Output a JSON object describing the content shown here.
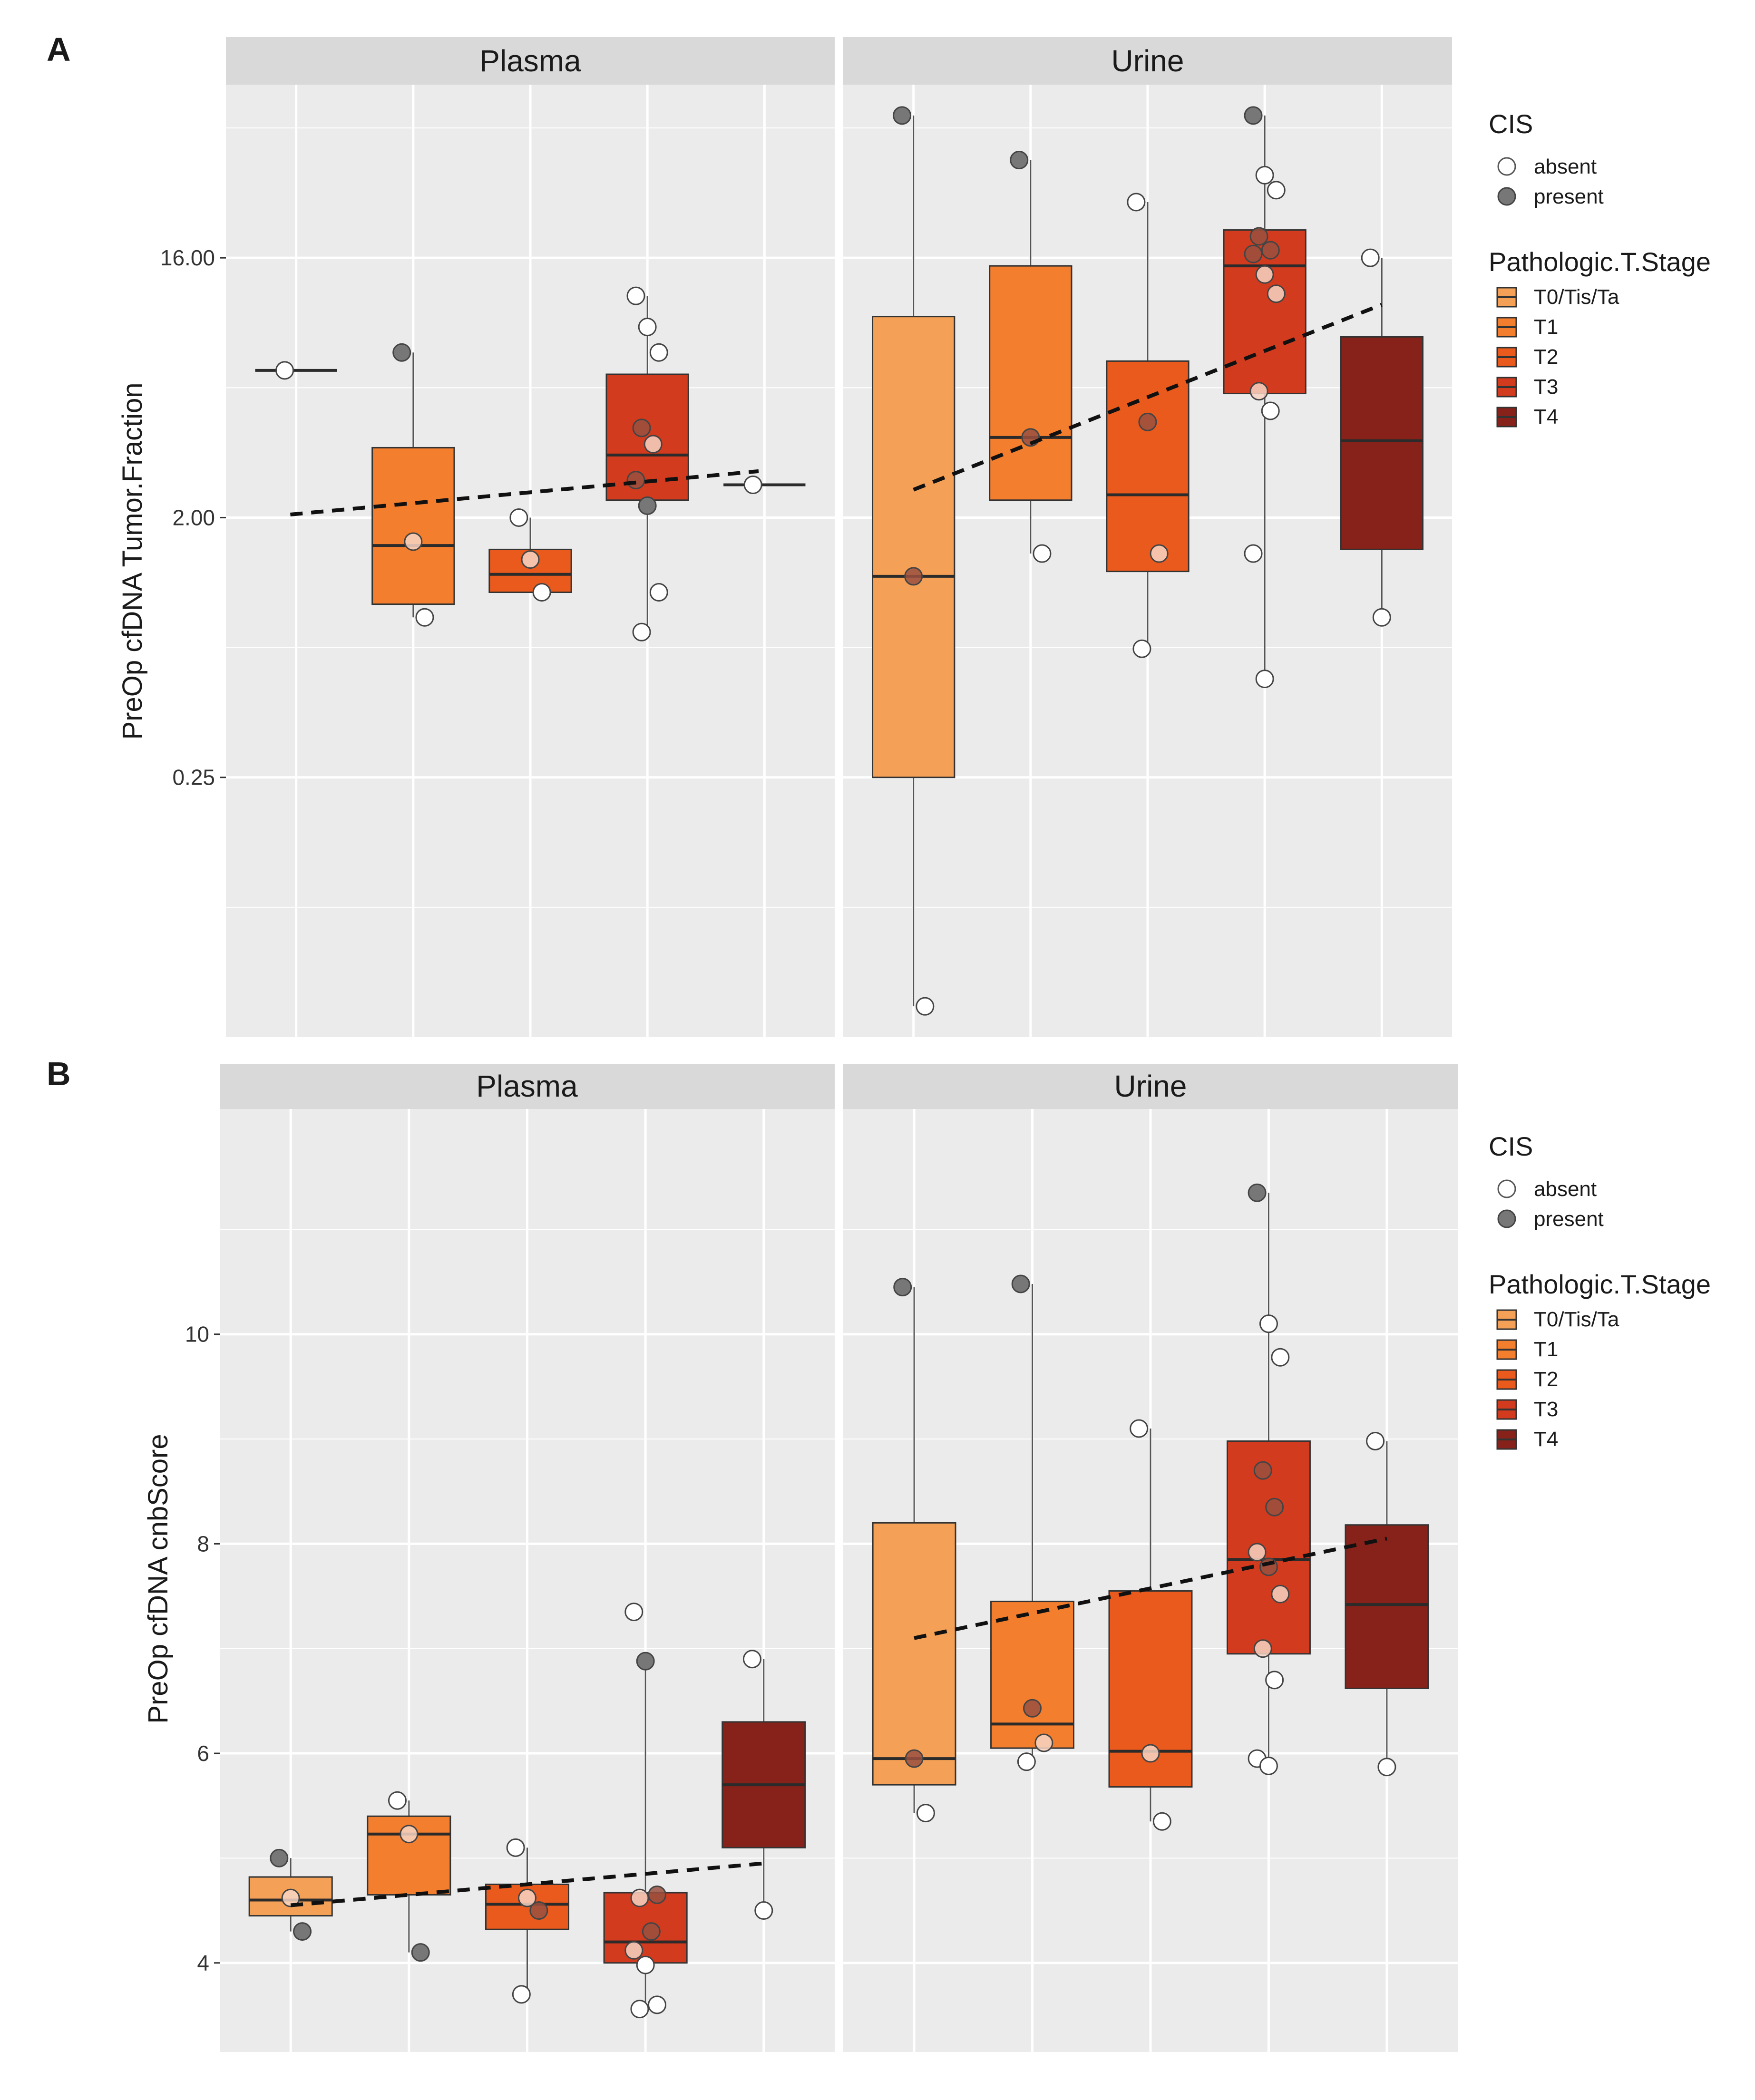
{
  "chart_data": [
    {
      "type": "box",
      "panel_label": "A",
      "ylabel": "PreOp cfDNA Tumor.Fraction",
      "y_scale": "log2",
      "ylim": [
        0.03125,
        64
      ],
      "yticks": [
        0.25,
        2,
        16
      ],
      "ytick_labels": [
        "0.25",
        "2.00",
        "16.00"
      ],
      "facets": [
        {
          "name": "Plasma",
          "groups": [
            {
              "stage": "T0/Tis/Ta",
              "min": 6.5,
              "q1": 6.5,
              "median": 6.5,
              "q3": 6.5,
              "max": 6.5,
              "points": [
                {
                  "v": 6.5,
                  "cis": "absent"
                }
              ]
            },
            {
              "stage": "T1",
              "min": 0.9,
              "q1": 1.0,
              "median": 1.6,
              "q3": 3.5,
              "max": 7.5,
              "points": [
                {
                  "v": 7.5,
                  "cis": "present"
                },
                {
                  "v": 1.65,
                  "cis": "absent"
                },
                {
                  "v": 0.9,
                  "cis": "absent"
                }
              ]
            },
            {
              "stage": "T2",
              "min": 1.1,
              "q1": 1.1,
              "median": 1.27,
              "q3": 1.55,
              "max": 2.0,
              "points": [
                {
                  "v": 2.0,
                  "cis": "absent"
                },
                {
                  "v": 1.43,
                  "cis": "absent"
                },
                {
                  "v": 1.1,
                  "cis": "absent"
                }
              ]
            },
            {
              "stage": "T3",
              "min": 0.8,
              "q1": 2.3,
              "median": 3.3,
              "q3": 6.3,
              "max": 11.8,
              "points": [
                {
                  "v": 11.8,
                  "cis": "absent"
                },
                {
                  "v": 9.2,
                  "cis": "absent"
                },
                {
                  "v": 7.5,
                  "cis": "absent"
                },
                {
                  "v": 4.1,
                  "cis": "present"
                },
                {
                  "v": 3.6,
                  "cis": "absent"
                },
                {
                  "v": 2.7,
                  "cis": "present"
                },
                {
                  "v": 2.2,
                  "cis": "present"
                },
                {
                  "v": 1.1,
                  "cis": "absent"
                },
                {
                  "v": 0.8,
                  "cis": "absent"
                }
              ]
            },
            {
              "stage": "T4",
              "min": 2.6,
              "q1": 2.6,
              "median": 2.6,
              "q3": 2.6,
              "max": 2.6,
              "points": [
                {
                  "v": 2.6,
                  "cis": "absent"
                }
              ]
            }
          ],
          "trend": {
            "x_start": 0.95,
            "y_start": 2.05,
            "x_end": 4.95,
            "y_end": 2.9
          }
        },
        {
          "name": "Urine",
          "groups": [
            {
              "stage": "T0/Tis/Ta",
              "min": 0.04,
              "q1": 0.25,
              "median": 1.25,
              "q3": 10.0,
              "max": 50.0,
              "points": [
                {
                  "v": 50.0,
                  "cis": "present"
                },
                {
                  "v": 1.25,
                  "cis": "present"
                },
                {
                  "v": 0.04,
                  "cis": "absent"
                }
              ]
            },
            {
              "stage": "T1",
              "min": 1.5,
              "q1": 2.3,
              "median": 3.8,
              "q3": 15.0,
              "max": 35.0,
              "points": [
                {
                  "v": 35.0,
                  "cis": "present"
                },
                {
                  "v": 3.8,
                  "cis": "present"
                },
                {
                  "v": 1.5,
                  "cis": "absent"
                }
              ]
            },
            {
              "stage": "T2",
              "min": 0.7,
              "q1": 1.3,
              "median": 2.4,
              "q3": 7.0,
              "max": 25.0,
              "points": [
                {
                  "v": 25.0,
                  "cis": "absent"
                },
                {
                  "v": 4.3,
                  "cis": "present"
                },
                {
                  "v": 1.5,
                  "cis": "absent"
                },
                {
                  "v": 0.7,
                  "cis": "absent"
                }
              ]
            },
            {
              "stage": "T3",
              "min": 0.55,
              "q1": 5.4,
              "median": 15.0,
              "q3": 20.0,
              "max": 50.0,
              "points": [
                {
                  "v": 50.0,
                  "cis": "present"
                },
                {
                  "v": 31.0,
                  "cis": "absent"
                },
                {
                  "v": 27.5,
                  "cis": "absent"
                },
                {
                  "v": 19.0,
                  "cis": "present"
                },
                {
                  "v": 17.0,
                  "cis": "present"
                },
                {
                  "v": 16.5,
                  "cis": "present"
                },
                {
                  "v": 14.0,
                  "cis": "absent"
                },
                {
                  "v": 12.0,
                  "cis": "absent"
                },
                {
                  "v": 5.5,
                  "cis": "absent"
                },
                {
                  "v": 4.7,
                  "cis": "absent"
                },
                {
                  "v": 1.5,
                  "cis": "absent"
                },
                {
                  "v": 0.55,
                  "cis": "absent"
                }
              ]
            },
            {
              "stage": "T4",
              "min": 0.9,
              "q1": 1.55,
              "median": 3.7,
              "q3": 8.5,
              "max": 16.0,
              "points": [
                {
                  "v": 16.0,
                  "cis": "absent"
                },
                {
                  "v": 0.9,
                  "cis": "absent"
                }
              ]
            }
          ],
          "trend": {
            "x_start": 1.0,
            "y_start": 2.5,
            "x_end": 5.0,
            "y_end": 11.0
          }
        }
      ]
    },
    {
      "type": "box",
      "panel_label": "B",
      "ylabel": "PreOp cfDNA cnbScore",
      "y_scale": "linear",
      "ylim": [
        3.15,
        12.15
      ],
      "yticks": [
        4,
        6,
        8,
        10
      ],
      "ytick_labels": [
        "4",
        "6",
        "8",
        "10"
      ],
      "facets": [
        {
          "name": "Plasma",
          "groups": [
            {
              "stage": "T0/Tis/Ta",
              "min": 4.3,
              "q1": 4.45,
              "median": 4.6,
              "q3": 4.82,
              "max": 5.0,
              "points": [
                {
                  "v": 5.0,
                  "cis": "present"
                },
                {
                  "v": 4.62,
                  "cis": "absent"
                },
                {
                  "v": 4.3,
                  "cis": "present"
                }
              ]
            },
            {
              "stage": "T1",
              "min": 4.1,
              "q1": 4.65,
              "median": 5.23,
              "q3": 5.4,
              "max": 5.55,
              "points": [
                {
                  "v": 5.55,
                  "cis": "absent"
                },
                {
                  "v": 5.23,
                  "cis": "absent"
                },
                {
                  "v": 4.1,
                  "cis": "present"
                }
              ]
            },
            {
              "stage": "T2",
              "min": 3.7,
              "q1": 4.32,
              "median": 4.56,
              "q3": 4.75,
              "max": 5.1,
              "points": [
                {
                  "v": 5.1,
                  "cis": "absent"
                },
                {
                  "v": 4.62,
                  "cis": "absent"
                },
                {
                  "v": 4.5,
                  "cis": "present"
                },
                {
                  "v": 3.7,
                  "cis": "absent"
                }
              ]
            },
            {
              "stage": "T3",
              "min": 3.55,
              "q1": 4.0,
              "median": 4.2,
              "q3": 4.67,
              "max": 6.9,
              "points": [
                {
                  "v": 7.35,
                  "cis": "absent"
                },
                {
                  "v": 6.88,
                  "cis": "present"
                },
                {
                  "v": 4.65,
                  "cis": "present"
                },
                {
                  "v": 4.62,
                  "cis": "absent"
                },
                {
                  "v": 4.3,
                  "cis": "present"
                },
                {
                  "v": 4.12,
                  "cis": "absent"
                },
                {
                  "v": 3.98,
                  "cis": "absent"
                },
                {
                  "v": 3.6,
                  "cis": "absent"
                },
                {
                  "v": 3.56,
                  "cis": "absent"
                }
              ]
            },
            {
              "stage": "T4",
              "min": 4.5,
              "q1": 5.1,
              "median": 5.7,
              "q3": 6.3,
              "max": 6.9,
              "points": [
                {
                  "v": 6.9,
                  "cis": "absent"
                },
                {
                  "v": 4.5,
                  "cis": "absent"
                }
              ]
            }
          ],
          "trend": {
            "x_start": 1.0,
            "y_start": 4.55,
            "x_end": 5.0,
            "y_end": 4.95
          }
        },
        {
          "name": "Urine",
          "groups": [
            {
              "stage": "T0/Tis/Ta",
              "min": 5.43,
              "q1": 5.7,
              "median": 5.95,
              "q3": 8.2,
              "max": 10.45,
              "points": [
                {
                  "v": 10.45,
                  "cis": "present"
                },
                {
                  "v": 5.95,
                  "cis": "present"
                },
                {
                  "v": 5.43,
                  "cis": "absent"
                }
              ]
            },
            {
              "stage": "T1",
              "min": 5.92,
              "q1": 6.05,
              "median": 6.28,
              "q3": 7.45,
              "max": 10.48,
              "points": [
                {
                  "v": 10.48,
                  "cis": "present"
                },
                {
                  "v": 6.43,
                  "cis": "present"
                },
                {
                  "v": 6.1,
                  "cis": "absent"
                },
                {
                  "v": 5.92,
                  "cis": "absent"
                }
              ]
            },
            {
              "stage": "T2",
              "min": 5.35,
              "q1": 5.68,
              "median": 6.02,
              "q3": 7.55,
              "max": 9.1,
              "points": [
                {
                  "v": 9.1,
                  "cis": "absent"
                },
                {
                  "v": 6.0,
                  "cis": "absent"
                },
                {
                  "v": 5.35,
                  "cis": "absent"
                }
              ]
            },
            {
              "stage": "T3",
              "min": 5.88,
              "q1": 6.95,
              "median": 7.85,
              "q3": 8.98,
              "max": 11.35,
              "points": [
                {
                  "v": 11.35,
                  "cis": "present"
                },
                {
                  "v": 10.1,
                  "cis": "absent"
                },
                {
                  "v": 9.78,
                  "cis": "absent"
                },
                {
                  "v": 8.7,
                  "cis": "present"
                },
                {
                  "v": 8.35,
                  "cis": "present"
                },
                {
                  "v": 7.92,
                  "cis": "absent"
                },
                {
                  "v": 7.78,
                  "cis": "present"
                },
                {
                  "v": 7.52,
                  "cis": "absent"
                },
                {
                  "v": 7.0,
                  "cis": "absent"
                },
                {
                  "v": 6.7,
                  "cis": "absent"
                },
                {
                  "v": 5.95,
                  "cis": "absent"
                },
                {
                  "v": 5.88,
                  "cis": "absent"
                }
              ]
            },
            {
              "stage": "T4",
              "min": 5.87,
              "q1": 6.62,
              "median": 7.42,
              "q3": 8.18,
              "max": 8.98,
              "points": [
                {
                  "v": 8.98,
                  "cis": "absent"
                },
                {
                  "v": 5.87,
                  "cis": "absent"
                }
              ]
            }
          ],
          "trend": {
            "x_start": 1.0,
            "y_start": 7.1,
            "x_end": 5.0,
            "y_end": 8.05
          }
        }
      ]
    }
  ],
  "legend": {
    "cis_title": "CIS",
    "cis_items": [
      {
        "label": "absent",
        "color": "#ffffff"
      },
      {
        "label": "present",
        "color": "#777777"
      }
    ],
    "stage_title": "Pathologic.T.Stage",
    "stage_items": [
      {
        "label": "T0/Tis/Ta",
        "color": "#f4a157"
      },
      {
        "label": "T1",
        "color": "#f27e2e"
      },
      {
        "label": "T2",
        "color": "#e95a1c"
      },
      {
        "label": "T3",
        "color": "#d23b1e"
      },
      {
        "label": "T4",
        "color": "#862219"
      }
    ]
  },
  "colors": {
    "panel_bg": "#ebebeb",
    "strip_bg": "#d9d9d9",
    "grid": "#ffffff",
    "point_absent": "#ffffff",
    "point_present": "#777777",
    "point_overlay_absent": "#f7d5c4",
    "point_overlay_present": "#9a5040"
  }
}
